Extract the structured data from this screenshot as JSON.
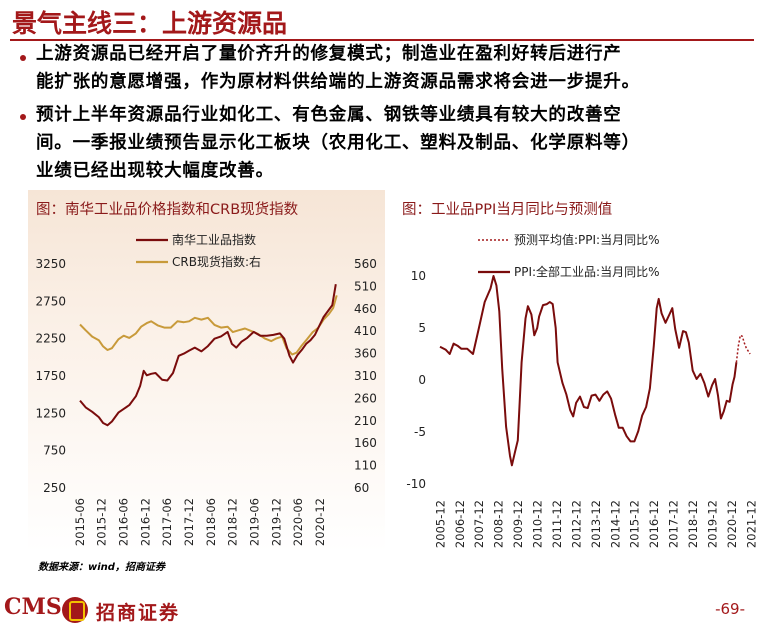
{
  "page": {
    "title": "景气主线三：上游资源品",
    "paragraphs": [
      [
        "上游资源品已经开启了量价齐升的修复模式；制造业在盈利好转后进行产",
        "能扩张的意愿增强，作为原材料供给端的上游资源品需求将会进一步提升。"
      ],
      [
        "预计上半年资源品行业如化工、有色金属、钢铁等业绩具有较大的改善空",
        "间。一季报业绩预告显示化工板块（农用化工、塑料及制品、化学原料等）",
        "业绩已经出现较大幅度改善。"
      ]
    ],
    "source": "数据来源：wind，招商证券",
    "footer": {
      "logo": "CMS",
      "company": "招商证券",
      "page_number": "-69-"
    }
  },
  "colors": {
    "brand": "#a3181a",
    "series_dark_red": "#7a0c0c",
    "series_gold": "#c89a3a"
  },
  "chart_data": [
    {
      "type": "line",
      "title": "图：南华工业品价格指数和CRB现货指数",
      "x_tick_labels": [
        "2015-06",
        "2015-12",
        "2016-06",
        "2016-12",
        "2017-06",
        "2017-12",
        "2018-06",
        "2018-12",
        "2019-06",
        "2019-12",
        "2020-06",
        "2020-12"
      ],
      "x_range": [
        2015.42,
        2021.33
      ],
      "y_left": {
        "ticks": [
          250,
          750,
          1250,
          1750,
          2250,
          2750,
          3250
        ],
        "range": [
          250,
          3250
        ]
      },
      "y_right": {
        "ticks": [
          60,
          110,
          160,
          210,
          260,
          310,
          360,
          410,
          460,
          510,
          560
        ],
        "range": [
          60,
          560
        ]
      },
      "series": [
        {
          "name": "南华工业品指数",
          "axis": "left",
          "color": "#7a0c0c",
          "points": [
            [
              2015.42,
              1420
            ],
            [
              2015.55,
              1330
            ],
            [
              2015.7,
              1270
            ],
            [
              2015.85,
              1200
            ],
            [
              2015.95,
              1120
            ],
            [
              2016.05,
              1090
            ],
            [
              2016.15,
              1140
            ],
            [
              2016.3,
              1260
            ],
            [
              2016.42,
              1310
            ],
            [
              2016.55,
              1360
            ],
            [
              2016.7,
              1480
            ],
            [
              2016.8,
              1620
            ],
            [
              2016.88,
              1820
            ],
            [
              2016.95,
              1760
            ],
            [
              2017.05,
              1780
            ],
            [
              2017.15,
              1790
            ],
            [
              2017.3,
              1700
            ],
            [
              2017.42,
              1690
            ],
            [
              2017.55,
              1790
            ],
            [
              2017.68,
              2020
            ],
            [
              2017.8,
              2050
            ],
            [
              2017.92,
              2090
            ],
            [
              2018.05,
              2130
            ],
            [
              2018.2,
              2080
            ],
            [
              2018.35,
              2150
            ],
            [
              2018.5,
              2250
            ],
            [
              2018.65,
              2280
            ],
            [
              2018.8,
              2340
            ],
            [
              2018.9,
              2180
            ],
            [
              2019.0,
              2130
            ],
            [
              2019.12,
              2210
            ],
            [
              2019.25,
              2260
            ],
            [
              2019.4,
              2340
            ],
            [
              2019.55,
              2290
            ],
            [
              2019.7,
              2290
            ],
            [
              2019.85,
              2300
            ],
            [
              2020.0,
              2320
            ],
            [
              2020.1,
              2250
            ],
            [
              2020.22,
              2020
            ],
            [
              2020.3,
              1930
            ],
            [
              2020.4,
              2030
            ],
            [
              2020.5,
              2100
            ],
            [
              2020.6,
              2180
            ],
            [
              2020.7,
              2230
            ],
            [
              2020.8,
              2300
            ],
            [
              2020.9,
              2420
            ],
            [
              2021.0,
              2540
            ],
            [
              2021.1,
              2620
            ],
            [
              2021.2,
              2700
            ],
            [
              2021.28,
              2980
            ]
          ]
        },
        {
          "name": "CRB现货指数:右",
          "axis": "right",
          "color": "#c89a3a",
          "points": [
            [
              2015.42,
              425
            ],
            [
              2015.55,
              412
            ],
            [
              2015.7,
              398
            ],
            [
              2015.85,
              390
            ],
            [
              2015.95,
              376
            ],
            [
              2016.05,
              368
            ],
            [
              2016.15,
              372
            ],
            [
              2016.3,
              392
            ],
            [
              2016.42,
              400
            ],
            [
              2016.55,
              395
            ],
            [
              2016.7,
              405
            ],
            [
              2016.82,
              420
            ],
            [
              2016.95,
              428
            ],
            [
              2017.05,
              432
            ],
            [
              2017.2,
              423
            ],
            [
              2017.35,
              418
            ],
            [
              2017.5,
              418
            ],
            [
              2017.65,
              432
            ],
            [
              2017.8,
              430
            ],
            [
              2017.92,
              432
            ],
            [
              2018.05,
              440
            ],
            [
              2018.2,
              436
            ],
            [
              2018.35,
              440
            ],
            [
              2018.5,
              424
            ],
            [
              2018.65,
              418
            ],
            [
              2018.8,
              420
            ],
            [
              2018.92,
              408
            ],
            [
              2019.05,
              412
            ],
            [
              2019.2,
              416
            ],
            [
              2019.35,
              410
            ],
            [
              2019.5,
              404
            ],
            [
              2019.65,
              394
            ],
            [
              2019.8,
              388
            ],
            [
              2019.92,
              394
            ],
            [
              2020.05,
              398
            ],
            [
              2020.15,
              372
            ],
            [
              2020.28,
              358
            ],
            [
              2020.38,
              362
            ],
            [
              2020.5,
              378
            ],
            [
              2020.62,
              392
            ],
            [
              2020.75,
              408
            ],
            [
              2020.88,
              418
            ],
            [
              2021.0,
              436
            ],
            [
              2021.12,
              448
            ],
            [
              2021.22,
              462
            ],
            [
              2021.3,
              490
            ]
          ]
        }
      ],
      "legend": "top-left"
    },
    {
      "type": "line",
      "title": "图：工业品PPI当月同比与预测值",
      "x_tick_labels": [
        "2005-12",
        "2006-12",
        "2007-12",
        "2008-12",
        "2009-12",
        "2010-12",
        "2011-12",
        "2012-12",
        "2013-12",
        "2014-12",
        "2015-12",
        "2016-12",
        "2017-12",
        "2018-12",
        "2019-12",
        "2020-12",
        "2021-12"
      ],
      "x_range": [
        2005.9,
        2021.95
      ],
      "y": {
        "ticks": [
          -10,
          -5,
          0,
          5,
          10
        ],
        "range": [
          -10,
          10
        ]
      },
      "series": [
        {
          "name": "PPI:全部工业品:当月同比%",
          "color": "#7a0c0c",
          "dash": "solid",
          "points": [
            [
              2005.9,
              3.2
            ],
            [
              2006.2,
              2.9
            ],
            [
              2006.4,
              2.5
            ],
            [
              2006.6,
              3.5
            ],
            [
              2006.8,
              3.3
            ],
            [
              2007.0,
              3.0
            ],
            [
              2007.3,
              3.0
            ],
            [
              2007.6,
              2.5
            ],
            [
              2007.9,
              5.0
            ],
            [
              2008.2,
              7.5
            ],
            [
              2008.5,
              8.8
            ],
            [
              2008.65,
              10.0
            ],
            [
              2008.8,
              9.1
            ],
            [
              2008.95,
              6.6
            ],
            [
              2009.1,
              1.1
            ],
            [
              2009.3,
              -4.5
            ],
            [
              2009.5,
              -7.3
            ],
            [
              2009.6,
              -8.2
            ],
            [
              2009.75,
              -7.0
            ],
            [
              2009.9,
              -5.8
            ],
            [
              2010.0,
              -2.1
            ],
            [
              2010.1,
              1.7
            ],
            [
              2010.3,
              5.9
            ],
            [
              2010.42,
              7.1
            ],
            [
              2010.6,
              6.3
            ],
            [
              2010.75,
              4.3
            ],
            [
              2010.9,
              5.0
            ],
            [
              2011.0,
              6.1
            ],
            [
              2011.2,
              7.2
            ],
            [
              2011.4,
              7.3
            ],
            [
              2011.55,
              7.5
            ],
            [
              2011.7,
              7.3
            ],
            [
              2011.85,
              5.0
            ],
            [
              2011.95,
              1.7
            ],
            [
              2012.2,
              -0.3
            ],
            [
              2012.4,
              -1.4
            ],
            [
              2012.6,
              -2.9
            ],
            [
              2012.75,
              -3.5
            ],
            [
              2012.9,
              -2.2
            ],
            [
              2013.1,
              -1.6
            ],
            [
              2013.3,
              -2.6
            ],
            [
              2013.5,
              -2.7
            ],
            [
              2013.7,
              -1.5
            ],
            [
              2013.9,
              -1.4
            ],
            [
              2014.1,
              -2.0
            ],
            [
              2014.3,
              -1.4
            ],
            [
              2014.5,
              -1.1
            ],
            [
              2014.7,
              -1.8
            ],
            [
              2014.9,
              -3.3
            ],
            [
              2015.1,
              -4.6
            ],
            [
              2015.3,
              -4.6
            ],
            [
              2015.5,
              -5.4
            ],
            [
              2015.7,
              -5.9
            ],
            [
              2015.9,
              -5.9
            ],
            [
              2016.1,
              -4.9
            ],
            [
              2016.3,
              -3.4
            ],
            [
              2016.5,
              -2.6
            ],
            [
              2016.7,
              -0.8
            ],
            [
              2016.9,
              3.3
            ],
            [
              2017.05,
              6.9
            ],
            [
              2017.15,
              7.8
            ],
            [
              2017.3,
              6.4
            ],
            [
              2017.5,
              5.5
            ],
            [
              2017.7,
              6.3
            ],
            [
              2017.85,
              6.9
            ],
            [
              2018.0,
              4.9
            ],
            [
              2018.2,
              3.1
            ],
            [
              2018.4,
              4.7
            ],
            [
              2018.55,
              4.6
            ],
            [
              2018.7,
              3.6
            ],
            [
              2018.9,
              0.9
            ],
            [
              2019.1,
              0.1
            ],
            [
              2019.3,
              0.6
            ],
            [
              2019.5,
              -0.3
            ],
            [
              2019.7,
              -1.6
            ],
            [
              2019.9,
              -0.5
            ],
            [
              2020.05,
              0.1
            ],
            [
              2020.2,
              -1.5
            ],
            [
              2020.35,
              -3.7
            ],
            [
              2020.5,
              -3.0
            ],
            [
              2020.65,
              -2.0
            ],
            [
              2020.8,
              -2.1
            ],
            [
              2020.95,
              -0.4
            ],
            [
              2021.05,
              0.3
            ],
            [
              2021.15,
              1.7
            ]
          ]
        },
        {
          "name": "预测平均值:PPI:当月同比%",
          "color": "#a3181a",
          "dash": "dotted",
          "points": [
            [
              2021.15,
              1.7
            ],
            [
              2021.25,
              3.3
            ],
            [
              2021.35,
              4.3
            ],
            [
              2021.45,
              4.2
            ],
            [
              2021.55,
              3.6
            ],
            [
              2021.65,
              3.1
            ],
            [
              2021.75,
              2.8
            ],
            [
              2021.85,
              2.5
            ]
          ]
        }
      ],
      "legend": "top-left"
    }
  ]
}
